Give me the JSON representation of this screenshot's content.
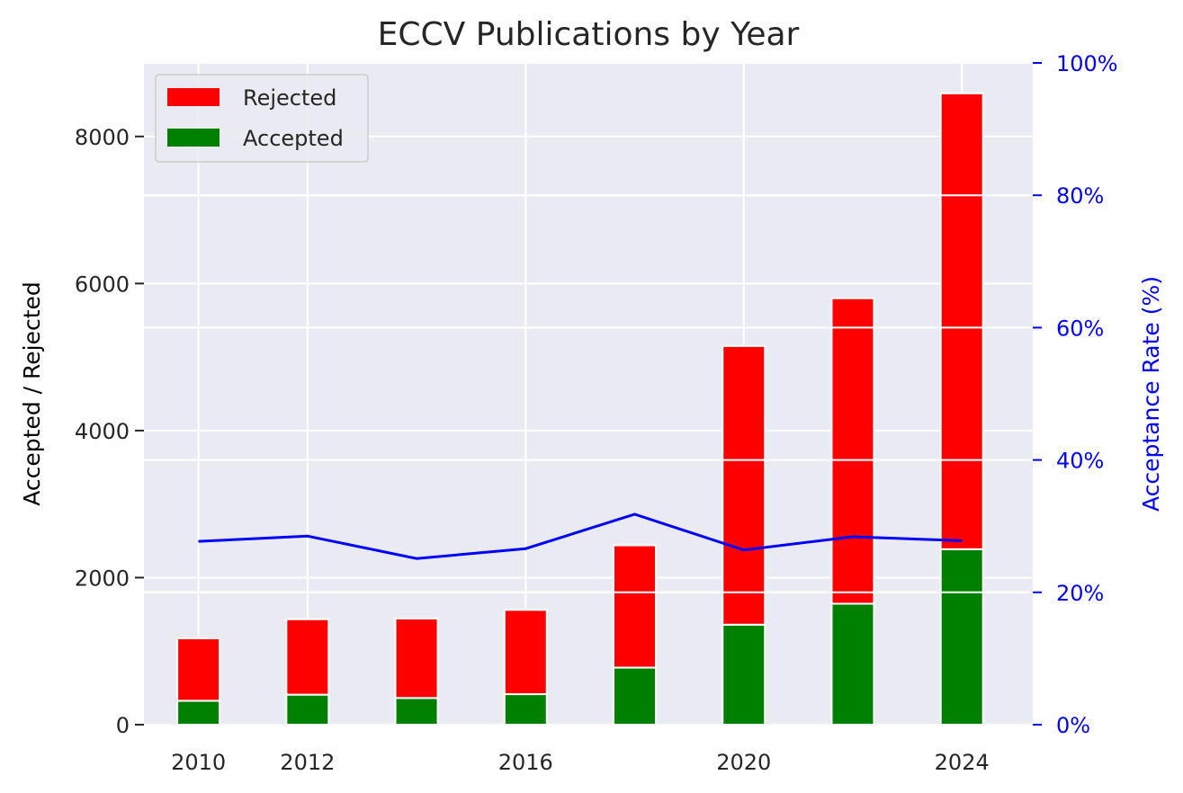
{
  "chart_data": {
    "type": "bar",
    "title": "ECCV Publications by Year",
    "xlabel": "",
    "ylabel": "Accepted / Rejected",
    "y2label": "Acceptance Rate (%)",
    "x": [
      2010,
      2012,
      2014,
      2016,
      2018,
      2020,
      2022,
      2024
    ],
    "x_tick_labels": [
      "2010",
      "2012",
      "2016",
      "2020",
      "2024"
    ],
    "x_tick_values": [
      2010,
      2012,
      2016,
      2020,
      2024
    ],
    "ylim": [
      0,
      9000
    ],
    "y_ticks": [
      0,
      2000,
      4000,
      6000,
      8000
    ],
    "y_tick_labels": [
      "0",
      "2000",
      "4000",
      "6000",
      "8000"
    ],
    "y2lim": [
      0,
      100
    ],
    "y2_ticks": [
      0,
      20,
      40,
      60,
      80,
      100
    ],
    "y2_tick_labels": [
      "0%",
      "20%",
      "40%",
      "60%",
      "80%",
      "100%"
    ],
    "stacked": true,
    "series": [
      {
        "name": "Accepted",
        "color": "#008000",
        "values": [
          325,
          408,
          363,
          415,
          776,
          1360,
          1645,
          2387
        ]
      },
      {
        "name": "Rejected",
        "color": "#ff0000",
        "values": [
          849,
          1026,
          1081,
          1146,
          1663,
          3790,
          4155,
          6199
        ]
      }
    ],
    "line_series": {
      "name": "Acceptance Rate",
      "color": "#0000ff",
      "axis": "right",
      "values": [
        27.7,
        28.5,
        25.1,
        26.6,
        31.8,
        26.4,
        28.4,
        27.8
      ]
    },
    "legend": {
      "placement": "top-left",
      "entries": [
        "Rejected",
        "Accepted"
      ]
    },
    "grid": true,
    "colors": {
      "background": "#eaeaf2",
      "grid": "#ffffff",
      "right_axis": "#0000ff"
    }
  }
}
